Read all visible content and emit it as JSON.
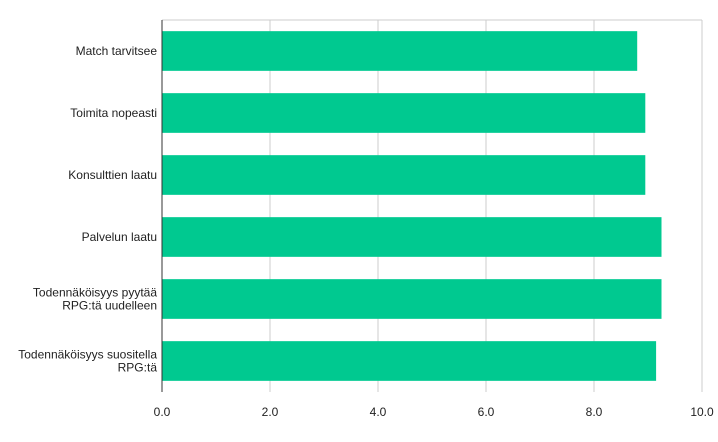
{
  "chart_data": {
    "type": "bar",
    "orientation": "horizontal",
    "categories": [
      [
        "Match tarvitsee"
      ],
      [
        "Toimita nopeasti"
      ],
      [
        "Konsulttien laatu"
      ],
      [
        "Palvelun laatu"
      ],
      [
        "Todennäköisyys pyytää",
        "RPG:tä uudelleen"
      ],
      [
        "Todennäköisyys suositella",
        "RPG:tä"
      ]
    ],
    "values": [
      8.8,
      8.95,
      8.95,
      9.25,
      9.25,
      9.15
    ],
    "xlim": [
      0,
      10
    ],
    "xticks": [
      "0.0",
      "2.0",
      "4.0",
      "6.0",
      "8.0",
      "10.0"
    ],
    "title": "",
    "xlabel": "",
    "ylabel": "",
    "grid": true,
    "legend": "none",
    "colors": {
      "bar": "#00c990",
      "grid": "#cccccc",
      "axis": "#333333",
      "text": "#222222"
    }
  }
}
